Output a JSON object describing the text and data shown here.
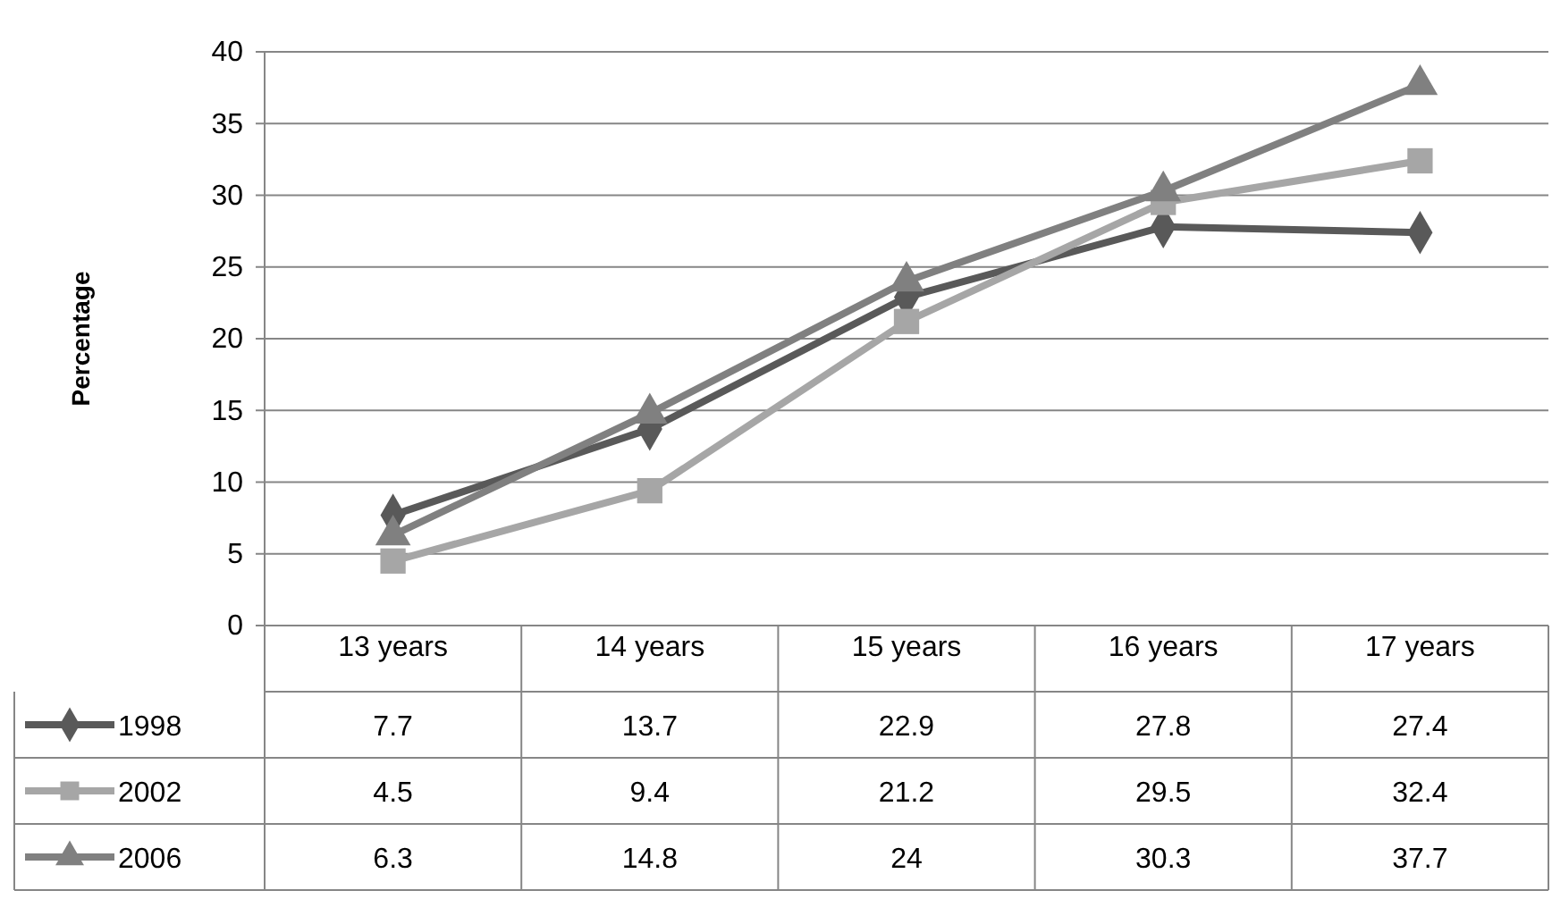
{
  "chart_data": {
    "type": "line",
    "ylabel": "Percentage",
    "categories": [
      "13 years",
      "14 years",
      "15 years",
      "16 years",
      "17 years"
    ],
    "series": [
      {
        "name": "1998",
        "color": "#595959",
        "marker": "diamond",
        "values": [
          7.7,
          13.7,
          22.9,
          27.8,
          27.4
        ]
      },
      {
        "name": "2002",
        "color": "#a6a6a6",
        "marker": "square",
        "values": [
          4.5,
          9.4,
          21.2,
          29.5,
          32.4
        ]
      },
      {
        "name": "2006",
        "color": "#808080",
        "marker": "triangle",
        "values": [
          6.3,
          14.8,
          24,
          30.3,
          37.7
        ]
      }
    ],
    "ylim": [
      0,
      40
    ],
    "yticks": [
      0,
      5,
      10,
      15,
      20,
      25,
      30,
      35,
      40
    ],
    "grid": "y",
    "data_labels": true,
    "legend": "bottom left",
    "line_style": "solid"
  }
}
